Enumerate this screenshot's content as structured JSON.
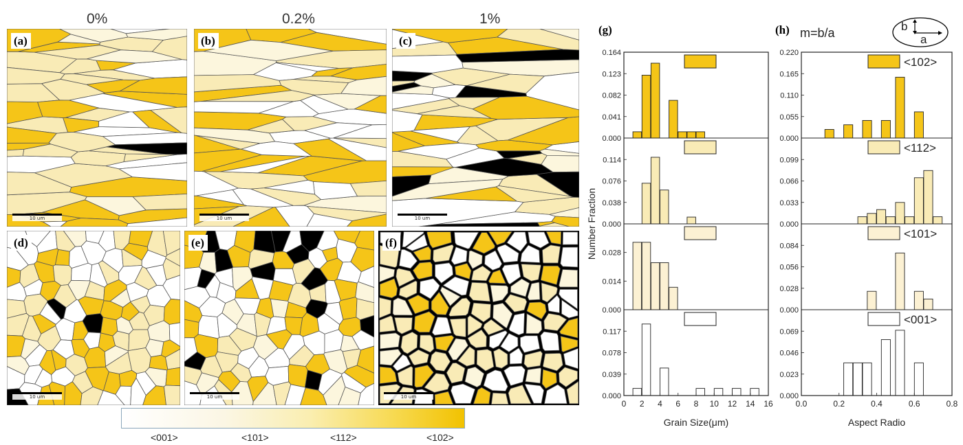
{
  "maps": {
    "column_titles": [
      "0%",
      "0.2%",
      "1%"
    ],
    "panels": [
      {
        "label": "(a)",
        "scale": "10 um",
        "black": 0.01
      },
      {
        "label": "(b)",
        "scale": "10 um",
        "black": 0.02
      },
      {
        "label": "(c)",
        "scale": "10 um",
        "black": 0.1
      },
      {
        "label": "(d)",
        "scale": "10 um",
        "black": 0.02
      },
      {
        "label": "(e)",
        "scale": "10 um",
        "black": 0.05
      },
      {
        "label": "(f)",
        "scale": "10 um",
        "black": 0.3
      }
    ],
    "color_key": [
      "<001>",
      "<101>",
      "<112>",
      "<102>"
    ],
    "colors": {
      "<102>": "#f5c518",
      "<112>": "#f9ebb6",
      "<101>": "#fcf6dd",
      "<001>": "#ffffff",
      "boundary": "#555555",
      "black": "#000000"
    }
  },
  "formula": "m=b/a",
  "ellipse_icon": {
    "b": "b",
    "a": "a"
  },
  "chart_data": [
    {
      "type": "bar",
      "label": "(g)",
      "xlabel": "Grain Size(μm)",
      "ylabel": "Number Fraction",
      "xlim": [
        0,
        16
      ],
      "xticks": [
        0,
        2,
        4,
        6,
        8,
        10,
        12,
        14,
        16
      ],
      "bin_width": 1,
      "series": [
        {
          "name": "<102>",
          "color": "#f5c518",
          "yticks": [
            "0.000",
            "0.041",
            "0.082",
            "0.123",
            "0.164"
          ],
          "ylim": [
            0,
            0.164
          ],
          "x": [
            1.5,
            2.5,
            3.5,
            5.5,
            6.5,
            7.5,
            8.5
          ],
          "values": [
            0.012,
            0.12,
            0.143,
            0.072,
            0.012,
            0.012,
            0.012
          ]
        },
        {
          "name": "<112>",
          "color": "#f9ebb6",
          "yticks": [
            "0.000",
            "0.038",
            "0.076",
            "0.114"
          ],
          "ylim": [
            0,
            0.152
          ],
          "x": [
            2.5,
            3.5,
            4.5,
            7.5
          ],
          "values": [
            0.072,
            0.118,
            0.06,
            0.012
          ]
        },
        {
          "name": "<101>",
          "color": "#fcf1d3",
          "yticks": [
            "0.000",
            "0.014",
            "0.028"
          ],
          "ylim": [
            0,
            0.042
          ],
          "x": [
            1.5,
            2.5,
            3.5,
            4.5,
            5.5
          ],
          "values": [
            0.033,
            0.033,
            0.023,
            0.023,
            0.011
          ]
        },
        {
          "name": "<001>",
          "color": "#ffffff",
          "yticks": [
            "0.000",
            "0.039",
            "0.078",
            "0.117"
          ],
          "ylim": [
            0,
            0.156
          ],
          "x": [
            1.5,
            2.5,
            4.5,
            8.5,
            10.5,
            12.5,
            14.5
          ],
          "values": [
            0.013,
            0.13,
            0.05,
            0.013,
            0.013,
            0.013,
            0.013
          ]
        }
      ]
    },
    {
      "type": "bar",
      "label": "(h)",
      "xlabel": "Aspect Radio",
      "ylabel": "",
      "xlim": [
        0,
        0.8
      ],
      "xticks": [
        0.0,
        0.2,
        0.4,
        0.6,
        0.8
      ],
      "bin_width": 0.05,
      "series": [
        {
          "name": "<102>",
          "color": "#f5c518",
          "yticks": [
            "0.000",
            "0.055",
            "0.110",
            "0.165",
            "0.220"
          ],
          "ylim": [
            0,
            0.22
          ],
          "x": [
            0.15,
            0.25,
            0.35,
            0.45,
            0.525,
            0.625
          ],
          "values": [
            0.022,
            0.034,
            0.045,
            0.045,
            0.156,
            0.067
          ]
        },
        {
          "name": "<112>",
          "color": "#f9ebb6",
          "yticks": [
            "0.000",
            "0.033",
            "0.066",
            "0.099"
          ],
          "ylim": [
            0,
            0.132
          ],
          "x": [
            0.325,
            0.375,
            0.425,
            0.475,
            0.525,
            0.575,
            0.625,
            0.675,
            0.725
          ],
          "values": [
            0.011,
            0.016,
            0.022,
            0.011,
            0.033,
            0.011,
            0.071,
            0.082,
            0.011
          ]
        },
        {
          "name": "<101>",
          "color": "#fcf1d3",
          "yticks": [
            "0.000",
            "0.028",
            "0.056",
            "0.084"
          ],
          "ylim": [
            0,
            0.112
          ],
          "x": [
            0.375,
            0.525,
            0.625,
            0.675
          ],
          "values": [
            0.024,
            0.074,
            0.024,
            0.014
          ]
        },
        {
          "name": "<001>",
          "color": "#ffffff",
          "yticks": [
            "0.000",
            "0.023",
            "0.046",
            "0.069"
          ],
          "ylim": [
            0,
            0.092
          ],
          "x": [
            0.25,
            0.3,
            0.35,
            0.45,
            0.525,
            0.625
          ],
          "values": [
            0.035,
            0.035,
            0.035,
            0.06,
            0.07,
            0.035
          ]
        }
      ]
    }
  ]
}
